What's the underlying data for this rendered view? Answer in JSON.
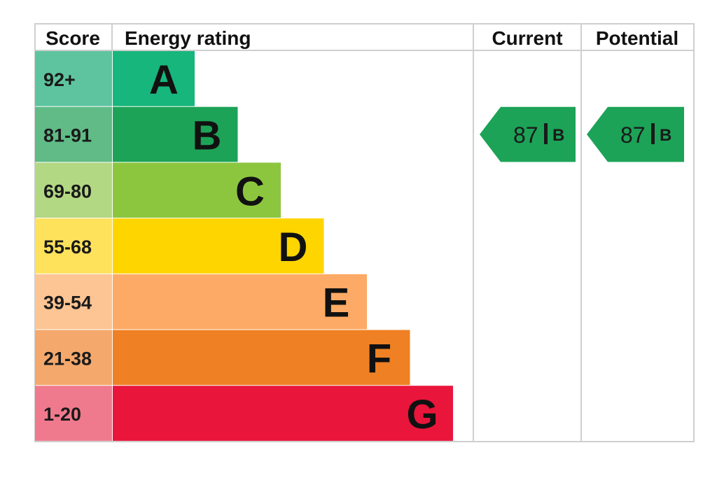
{
  "headers": {
    "score": "Score",
    "rating": "Energy rating",
    "current": "Current",
    "potential": "Potential"
  },
  "chart_data": {
    "type": "bar",
    "bands": [
      {
        "letter": "A",
        "range": "92+",
        "color": "#17b67c",
        "score_color": "#5ec4a0"
      },
      {
        "letter": "B",
        "range": "81-91",
        "color": "#1ca357",
        "score_color": "#60bb86"
      },
      {
        "letter": "C",
        "range": "69-80",
        "color": "#8cc63f",
        "score_color": "#b2d884"
      },
      {
        "letter": "D",
        "range": "55-68",
        "color": "#ffd500",
        "score_color": "#ffe25c"
      },
      {
        "letter": "E",
        "range": "39-54",
        "color": "#fcaa65",
        "score_color": "#fdc494"
      },
      {
        "letter": "F",
        "range": "21-38",
        "color": "#ef8023",
        "score_color": "#f4a86c"
      },
      {
        "letter": "G",
        "range": "1-20",
        "color": "#e9153b",
        "score_color": "#f07a8d"
      }
    ],
    "current": {
      "score": "87",
      "band": "B",
      "color": "#1ca357"
    },
    "potential": {
      "score": "87",
      "band": "B",
      "color": "#1ca357"
    }
  }
}
